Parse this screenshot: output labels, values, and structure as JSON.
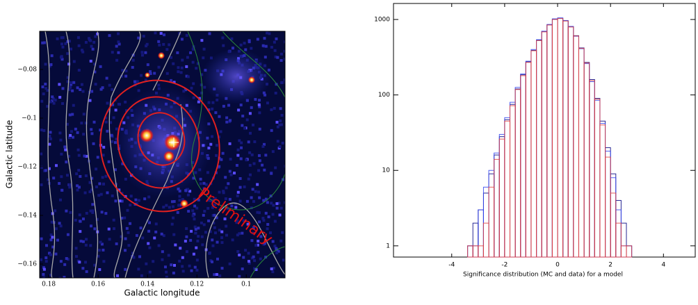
{
  "chart_data": [
    {
      "type": "image",
      "xlabel": "Galactic longitude",
      "ylabel": "Galactic latitude",
      "annotation": "Preliminary",
      "xlim": [
        0.1837,
        0.0843
      ],
      "ylim": [
        -0.1657,
        -0.0643
      ],
      "xticks": [
        0.18,
        0.16,
        0.14,
        0.12,
        0.1
      ],
      "yticks": [
        {
          "value": -0.08,
          "label": "−0.08"
        },
        {
          "value": -0.1,
          "label": "−0.1"
        },
        {
          "value": -0.12,
          "label": "−0.12"
        },
        {
          "value": -0.14,
          "label": "−0.14"
        },
        {
          "value": -0.16,
          "label": "−0.16"
        }
      ]
    },
    {
      "type": "histogram",
      "xlabel": "Significance distribution (MC and data) for a model",
      "log_y": true,
      "xlim": [
        -6.2,
        5.2
      ],
      "ylim": [
        0.71,
        1630
      ],
      "xticks": [
        -4,
        -2,
        0,
        2,
        4
      ],
      "yticks": [
        1,
        10,
        100,
        1000
      ],
      "bins": [
        -3.4,
        -3.2,
        -3.0,
        -2.8,
        -2.6,
        -2.4,
        -2.2,
        -2.0,
        -1.8,
        -1.6,
        -1.4,
        -1.2,
        -1.0,
        -0.8,
        -0.6,
        -0.4,
        -0.2,
        0.0,
        0.2,
        0.4,
        0.6,
        0.8,
        1.0,
        1.2,
        1.4,
        1.6,
        1.8,
        2.0,
        2.2,
        2.4,
        2.6,
        2.8
      ],
      "series": [
        {
          "color": "#000080",
          "values": [
            1,
            2,
            3,
            5,
            9,
            16,
            28,
            47,
            75,
            120,
            185,
            275,
            390,
            530,
            690,
            850,
            1010,
            1040,
            960,
            800,
            610,
            420,
            270,
            160,
            90,
            45,
            20,
            9,
            4,
            2,
            1
          ]
        },
        {
          "color": "#3344ee",
          "values": [
            1,
            1,
            3,
            6,
            10,
            17,
            30,
            50,
            80,
            126,
            190,
            280,
            400,
            540,
            700,
            860,
            1020,
            1050,
            970,
            810,
            600,
            410,
            260,
            150,
            85,
            42,
            18,
            8,
            3,
            1,
            1
          ]
        },
        {
          "color": "#e04040",
          "values": [
            1,
            1,
            1,
            2,
            6,
            14,
            26,
            45,
            72,
            118,
            180,
            270,
            385,
            525,
            685,
            845,
            1000,
            1030,
            955,
            795,
            605,
            415,
            265,
            155,
            88,
            40,
            15,
            5,
            2,
            1,
            1
          ]
        }
      ]
    }
  ]
}
